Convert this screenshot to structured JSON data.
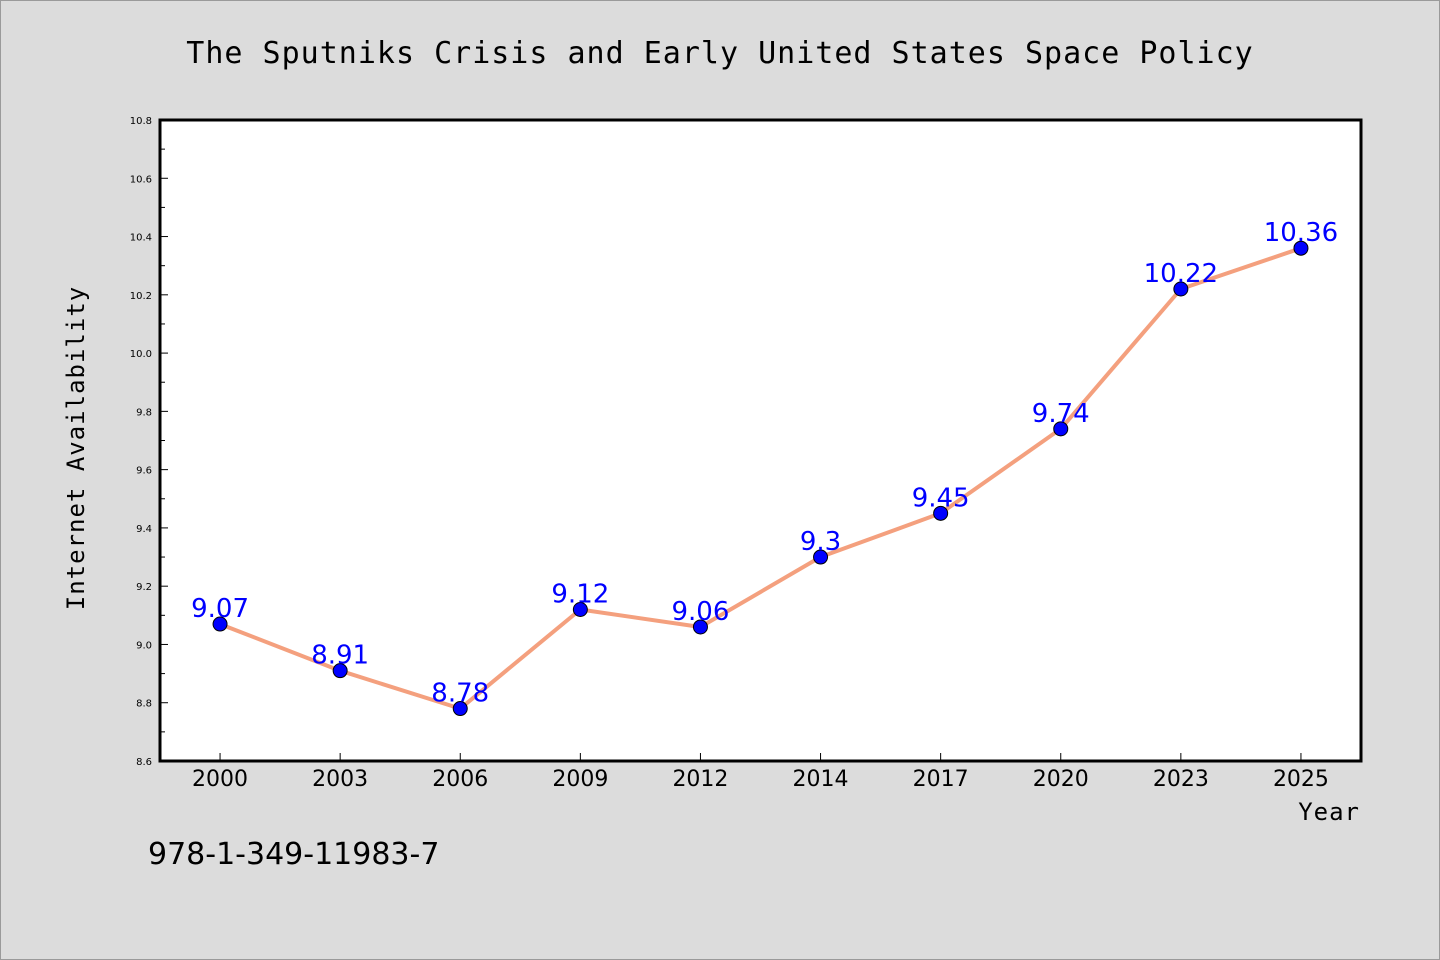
{
  "chart_data": {
    "type": "line",
    "title": "The Sputniks Crisis and Early United States Space Policy",
    "xlabel": "Year",
    "ylabel": "Internet Availability",
    "categories": [
      "2000",
      "2003",
      "2006",
      "2009",
      "2012",
      "2014",
      "2017",
      "2020",
      "2023",
      "2025"
    ],
    "values": [
      9.07,
      8.91,
      8.78,
      9.12,
      9.06,
      9.3,
      9.45,
      9.74,
      10.22,
      10.36
    ],
    "data_labels": [
      "9.07",
      "8.91",
      "8.78",
      "9.12",
      "9.06",
      "9.3",
      "9.45",
      "9.74",
      "10.22",
      "10.36"
    ],
    "ylim": [
      8.6,
      10.8
    ],
    "y_ticks": [
      "8.6",
      "8.8",
      "9.0",
      "9.2",
      "9.4",
      "9.6",
      "9.8",
      "10.0",
      "10.2",
      "10.4",
      "10.6",
      "10.8"
    ],
    "grid": false,
    "legend": "none",
    "colors": {
      "line": "#f4a07e",
      "marker": "#0000ff",
      "label": "#0000ff",
      "background": "#dcdcdc",
      "plot_area": "#ffffff"
    }
  },
  "footer": {
    "isbn": "978-1-349-11983-7"
  }
}
